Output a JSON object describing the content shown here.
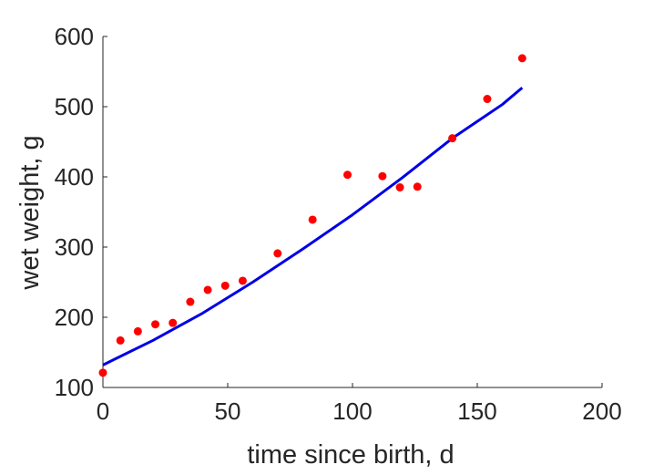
{
  "chart_data": {
    "type": "scatter",
    "xlabel": "time since birth, d",
    "ylabel": "wet weight, g",
    "xlim": [
      0,
      200
    ],
    "ylim": [
      100,
      600
    ],
    "xticks": [
      0,
      50,
      100,
      150,
      200
    ],
    "yticks": [
      100,
      200,
      300,
      400,
      500,
      600
    ],
    "grid": false,
    "series": [
      {
        "kind": "scatter",
        "color": "#ff0000",
        "x": [
          0,
          7,
          14,
          21,
          28,
          35,
          42,
          49,
          56,
          70,
          84,
          98,
          112,
          119,
          126,
          140,
          154,
          168
        ],
        "y": [
          121,
          167,
          180,
          190,
          192,
          222,
          239,
          245,
          252,
          291,
          339,
          403,
          401,
          385,
          386,
          455,
          511,
          569
        ]
      },
      {
        "kind": "line",
        "color": "#0000e6",
        "x": [
          0,
          20,
          40,
          60,
          80,
          100,
          120,
          140,
          160,
          168
        ],
        "y": [
          132,
          167,
          206,
          250,
          297,
          346,
          399,
          455,
          503,
          527
        ]
      }
    ]
  }
}
